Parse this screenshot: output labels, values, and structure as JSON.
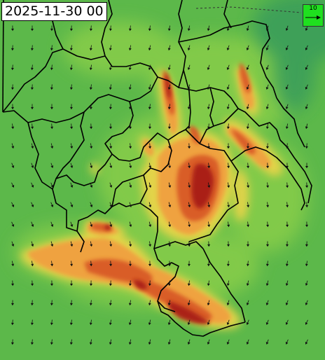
{
  "map": {
    "timestamp": "2025-11-30 00",
    "legend": {
      "reference_value": "10",
      "color": "#1fe01f"
    },
    "colors": {
      "background_green": "#5cb84a",
      "light_green": "#86cc4a",
      "yellow": "#e8d44a",
      "orange": "#f0a040",
      "red_orange": "#d85a28",
      "dark_red": "#a81e12",
      "border": "#000000"
    },
    "icons": [
      "wind-arrow-icon"
    ]
  }
}
